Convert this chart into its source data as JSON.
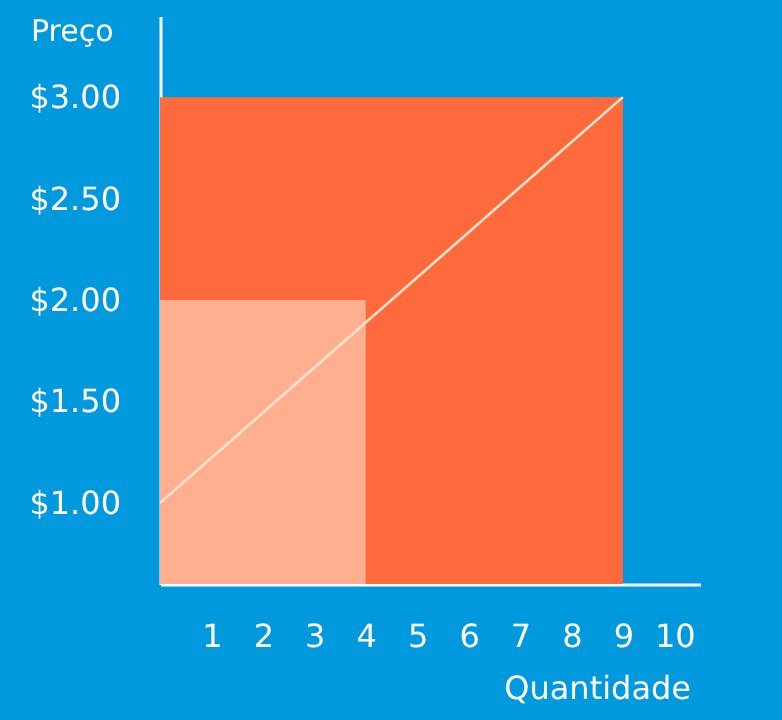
{
  "chart_data": {
    "type": "area",
    "xlabel": "Quantidade",
    "ylabel": "Preço",
    "series": [
      {
        "color": "#ff6a3d",
        "x": [
          0,
          9
        ],
        "values": [
          3.0,
          3.0
        ]
      },
      {
        "color": "#ffaf8f",
        "x": [
          0,
          4
        ],
        "values": [
          2.0,
          2.0
        ]
      },
      {
        "type": "line",
        "color": "#ffe3cc",
        "x": [
          0,
          9
        ],
        "values": [
          1.0,
          3.0
        ]
      }
    ],
    "xlim": [
      0,
      10.5
    ],
    "xticks": [
      1,
      2,
      3,
      4,
      5,
      6,
      7,
      8,
      9,
      10
    ],
    "ylim": [
      0.6,
      3.4
    ],
    "yticks": [
      {
        "value": 1.0,
        "label": "$1.00"
      },
      {
        "value": 1.5,
        "label": "$1.50"
      },
      {
        "value": 2.0,
        "label": "$2.00"
      },
      {
        "value": 2.5,
        "label": "$2.50"
      },
      {
        "value": 3.0,
        "label": "$3.00"
      }
    ],
    "grid": false,
    "legend": false,
    "marker": "none",
    "line_style": "solid"
  }
}
